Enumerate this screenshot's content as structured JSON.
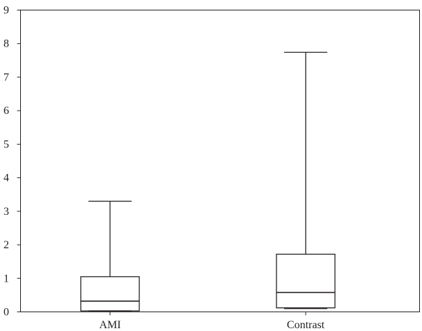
{
  "chart_data": {
    "type": "box",
    "title": "",
    "xlabel": "",
    "ylabel": "",
    "ylim": [
      0,
      9
    ],
    "yticks": [
      0,
      1,
      2,
      3,
      4,
      5,
      6,
      7,
      8,
      9
    ],
    "ytick_labels": [
      "0",
      "1",
      "2",
      "3",
      "4",
      "5",
      "6",
      "7",
      "8",
      "9"
    ],
    "categories": [
      "AMI",
      "Contrast"
    ],
    "boxes": [
      {
        "category": "AMI",
        "min": 0.03,
        "q1": 0.03,
        "median": 0.32,
        "q3": 1.05,
        "max": 3.3
      },
      {
        "category": "Contrast",
        "min": 0.1,
        "q1": 0.12,
        "median": 0.58,
        "q3": 1.72,
        "max": 7.74
      }
    ],
    "grid": false,
    "colors": {
      "stroke": "#231f20",
      "background": "#ffffff"
    }
  }
}
